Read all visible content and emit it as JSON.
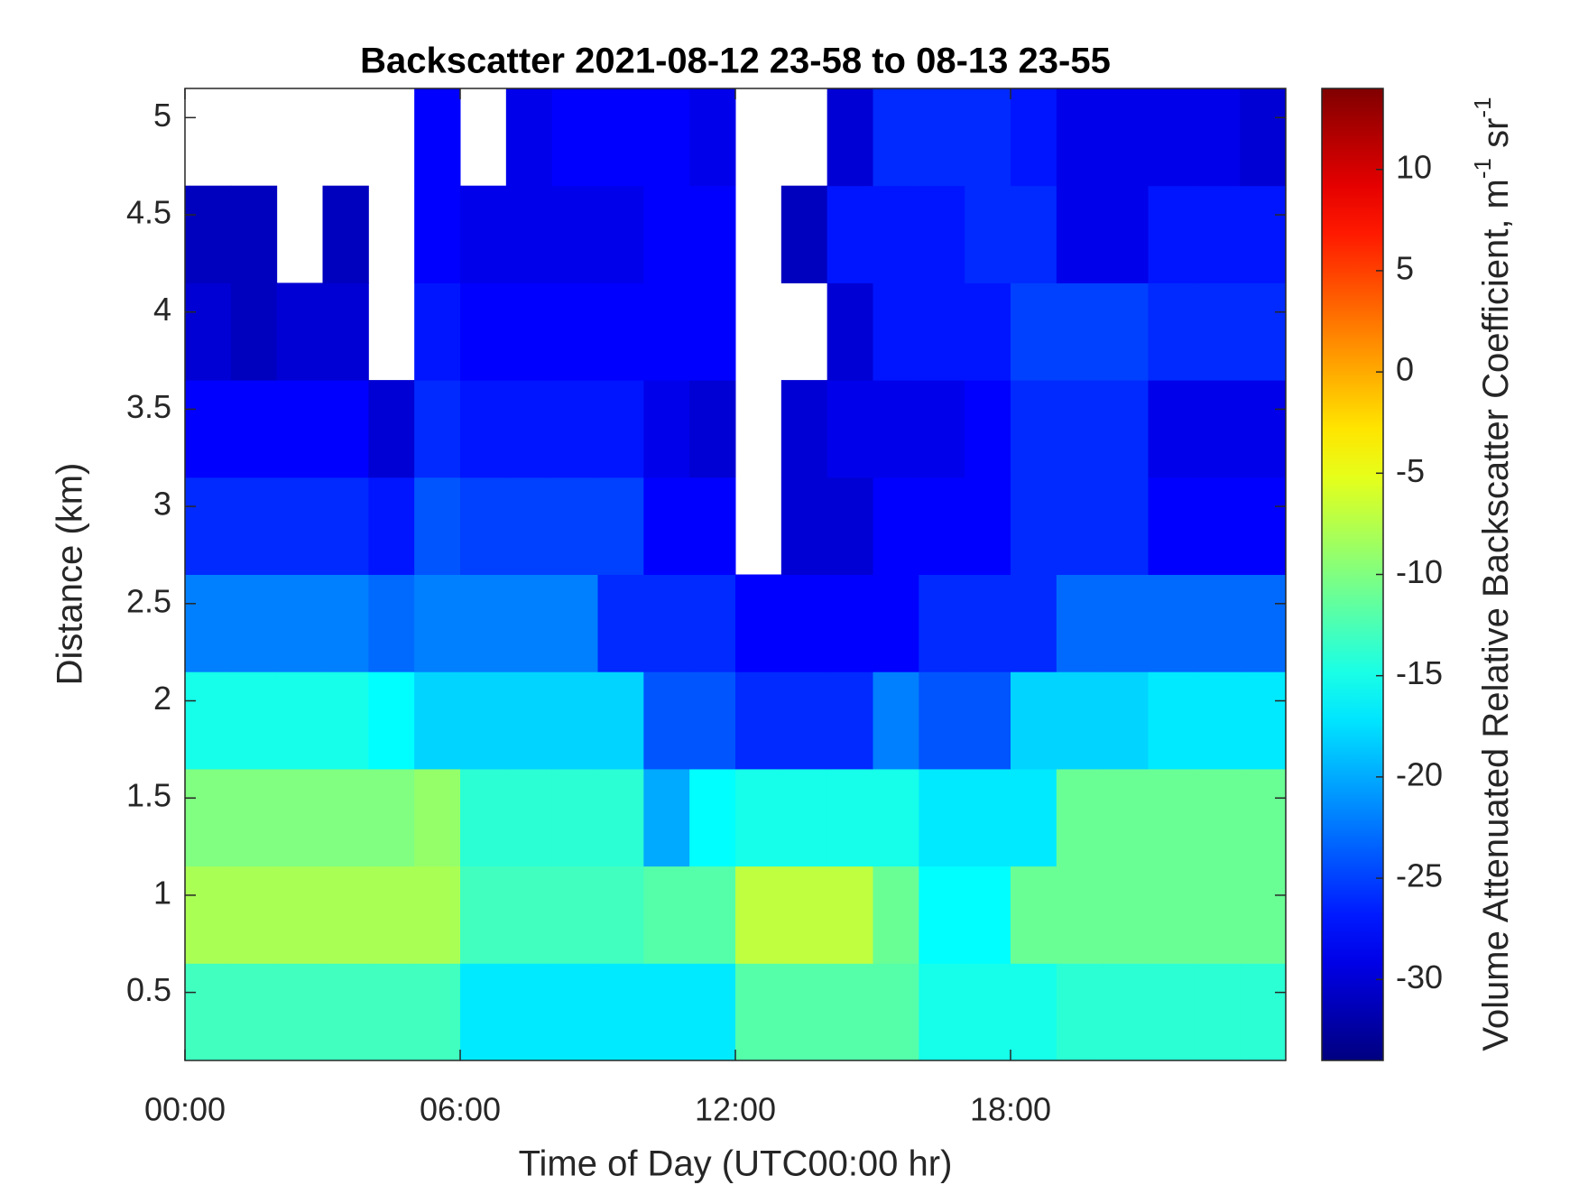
{
  "chart_data": {
    "type": "heatmap",
    "title": "Backscatter 2021-08-12 23-58 to 08-13 23-55",
    "xlabel": "Time of Day (UTC00:00 hr)",
    "ylabel": "Distance (km)",
    "colorbar_label": [
      "Volume Attenuated Relative Backscatter Coefficient, m",
      "-1",
      " sr",
      "-1"
    ],
    "colormap": "jet",
    "xlim": [
      0,
      24
    ],
    "ylim": [
      0.15,
      5.15
    ],
    "xticks": [
      {
        "value": 0,
        "label": "00:00"
      },
      {
        "value": 6,
        "label": "06:00"
      },
      {
        "value": 12,
        "label": "12:00"
      },
      {
        "value": 18,
        "label": "18:00"
      }
    ],
    "yticks": [
      0.5,
      1,
      1.5,
      2,
      2.5,
      3,
      3.5,
      4,
      4.5,
      5
    ],
    "clim": [
      -34,
      14
    ],
    "cticks": [
      -30,
      -25,
      -20,
      -15,
      -10,
      -5,
      0,
      5,
      10
    ],
    "x_edges": [
      0,
      1,
      2,
      3,
      4,
      5,
      6,
      7,
      8,
      9,
      10,
      11,
      12,
      13,
      14,
      15,
      16,
      17,
      18,
      19,
      20,
      21,
      22,
      23,
      24
    ],
    "y_edges": [
      0.15,
      0.65,
      1.15,
      1.65,
      2.15,
      2.65,
      3.15,
      3.65,
      4.15,
      4.65,
      5.15
    ],
    "values": [
      [
        -13,
        -13,
        -13,
        -13,
        -13,
        -13,
        -17,
        -17,
        -17,
        -17,
        -17,
        -17,
        -12,
        -12,
        -12,
        -12,
        -15,
        -15,
        -15,
        -14,
        -14,
        -14,
        -14,
        -14
      ],
      [
        -8,
        -8,
        -8,
        -8,
        -8,
        -8,
        -13,
        -13,
        -13,
        -13,
        -12,
        -12,
        -7,
        -7,
        -7,
        -11,
        -16,
        -16,
        -11,
        -11,
        -11,
        -11,
        -11,
        -11
      ],
      [
        -10,
        -10,
        -10,
        -10,
        -10,
        -9,
        -14,
        -14,
        -14,
        -14,
        -20,
        -16,
        -15,
        -15,
        -15,
        -15,
        -17,
        -17,
        -17,
        -11,
        -11,
        -11,
        -11,
        -11
      ],
      [
        -15,
        -15,
        -15,
        -15,
        -16,
        -18,
        -18,
        -18,
        -18,
        -18,
        -24,
        -24,
        -26,
        -26,
        -26,
        -22,
        -24,
        -24,
        -18,
        -18,
        -18,
        -17,
        -17,
        -17
      ],
      [
        -22,
        -22,
        -22,
        -22,
        -23,
        -22,
        -22,
        -22,
        -22,
        -26,
        -26,
        -26,
        -28,
        -28,
        -28,
        -28,
        -26,
        -26,
        -26,
        -23,
        -23,
        -23,
        -23,
        -23
      ],
      [
        -26,
        -26,
        -26,
        -26,
        -27,
        -24,
        -25,
        -25,
        -25,
        -25,
        -28,
        -28,
        null,
        -30,
        -30,
        -28,
        -28,
        -28,
        -26,
        -26,
        -26,
        -28,
        -28,
        -28
      ],
      [
        -28,
        -28,
        -28,
        -28,
        -30,
        -26,
        -27,
        -27,
        -27,
        -27,
        -29,
        -30,
        null,
        -30,
        -29,
        -29,
        -29,
        -28,
        -26,
        -26,
        -26,
        -29,
        -29,
        -29
      ],
      [
        -30,
        -31,
        -30,
        -30,
        null,
        -27,
        -28,
        -28,
        -28,
        -28,
        -28,
        -28,
        null,
        null,
        -30,
        -27,
        -27,
        -27,
        -25,
        -25,
        -25,
        -26,
        -26,
        -26
      ],
      [
        -31,
        -31,
        null,
        -31,
        null,
        -28,
        -29,
        -29,
        -29,
        -29,
        -28,
        -28,
        null,
        -31,
        -27,
        -27,
        -27,
        -26,
        -26,
        -29,
        -29,
        -27,
        -27,
        -27
      ],
      [
        null,
        null,
        null,
        null,
        null,
        -28,
        null,
        -29,
        -28,
        -28,
        -28,
        -29,
        null,
        null,
        -30,
        -26,
        -26,
        -26,
        -27,
        -29,
        -29,
        -29,
        -29,
        -30
      ]
    ]
  }
}
